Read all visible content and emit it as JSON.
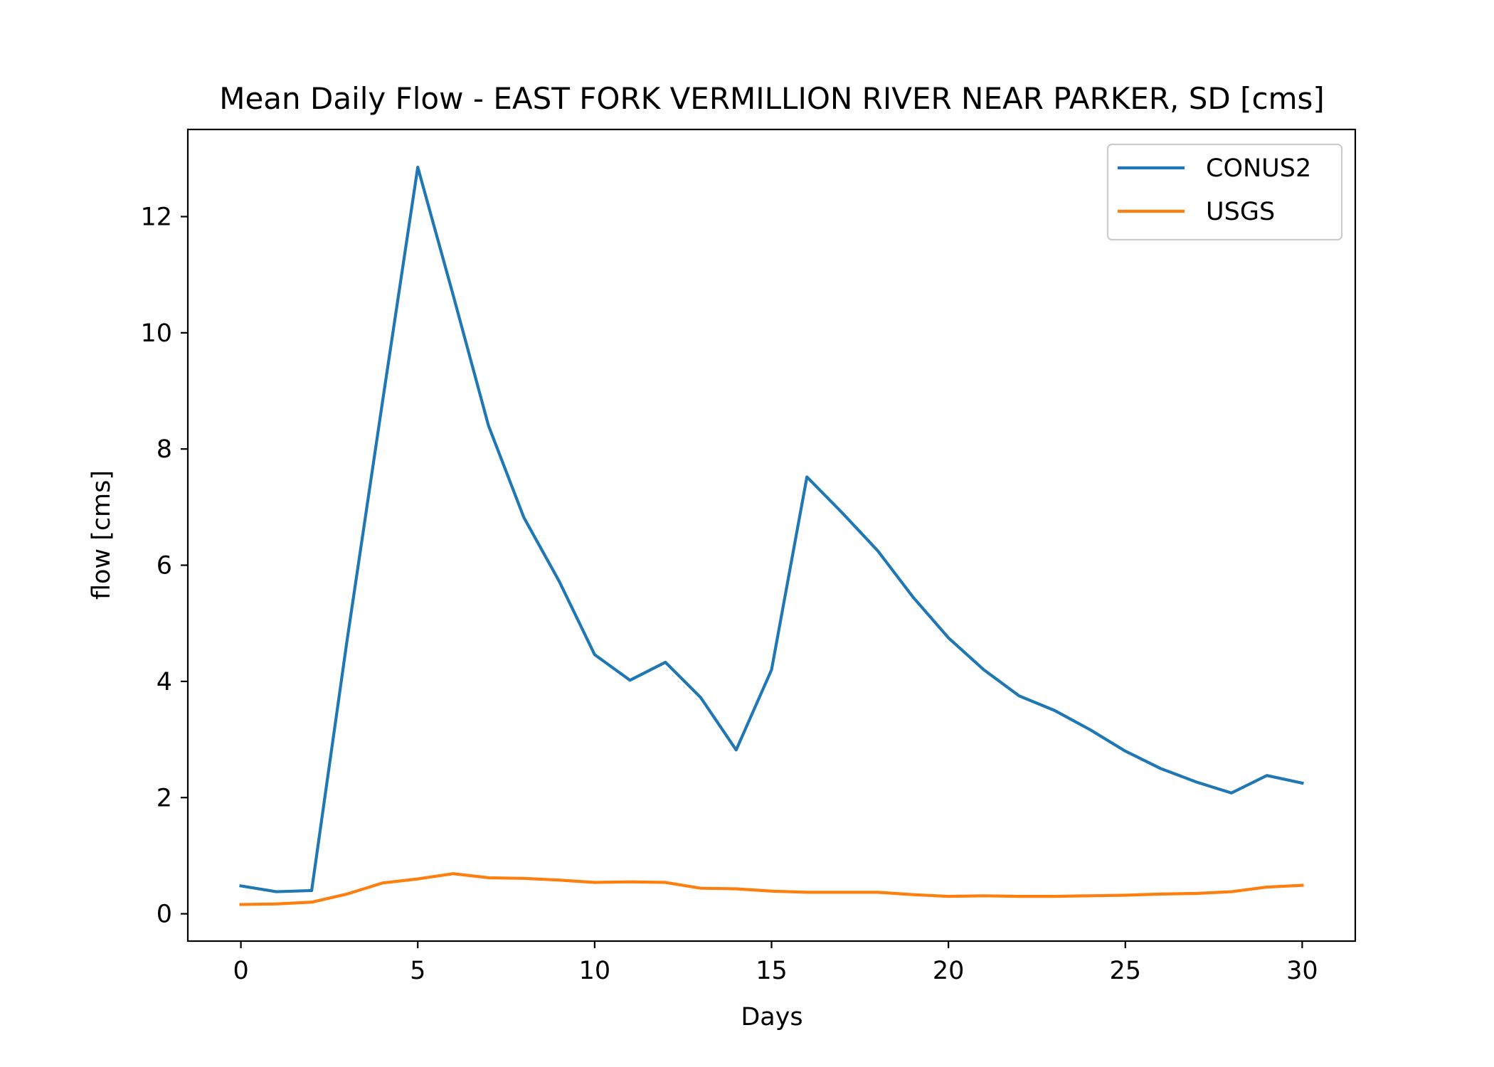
{
  "chart_data": {
    "type": "line",
    "title": "Mean Daily Flow - EAST FORK VERMILLION RIVER NEAR PARKER, SD [cms]",
    "xlabel": "Days",
    "ylabel": "flow [cms]",
    "xlim": [
      -1.5,
      31.5
    ],
    "ylim": [
      -0.47,
      13.5
    ],
    "xticks": [
      0,
      5,
      10,
      15,
      20,
      25,
      30
    ],
    "yticks": [
      0,
      2,
      4,
      6,
      8,
      10,
      12
    ],
    "grid": false,
    "legend": "top-right",
    "x": [
      0,
      1,
      2,
      3,
      4,
      5,
      6,
      7,
      8,
      9,
      10,
      11,
      12,
      13,
      14,
      15,
      16,
      17,
      18,
      19,
      20,
      21,
      22,
      23,
      24,
      25,
      26,
      27,
      28,
      29,
      30
    ],
    "series": [
      {
        "name": "CONUS2",
        "color": "#1f77b4",
        "values": [
          0.48,
          0.38,
          0.4,
          4.7,
          8.8,
          12.85,
          10.65,
          8.4,
          6.82,
          5.72,
          4.46,
          4.02,
          4.33,
          3.72,
          2.82,
          4.2,
          7.52,
          6.9,
          6.25,
          5.45,
          4.75,
          4.2,
          3.75,
          3.5,
          3.17,
          2.8,
          2.5,
          2.27,
          2.08,
          2.38,
          2.25
        ]
      },
      {
        "name": "USGS",
        "color": "#ff7f0e",
        "values": [
          0.16,
          0.17,
          0.2,
          0.34,
          0.53,
          0.6,
          0.69,
          0.62,
          0.61,
          0.58,
          0.54,
          0.55,
          0.54,
          0.44,
          0.43,
          0.39,
          0.37,
          0.37,
          0.37,
          0.33,
          0.3,
          0.31,
          0.3,
          0.3,
          0.31,
          0.32,
          0.34,
          0.35,
          0.38,
          0.46,
          0.49
        ]
      }
    ]
  }
}
